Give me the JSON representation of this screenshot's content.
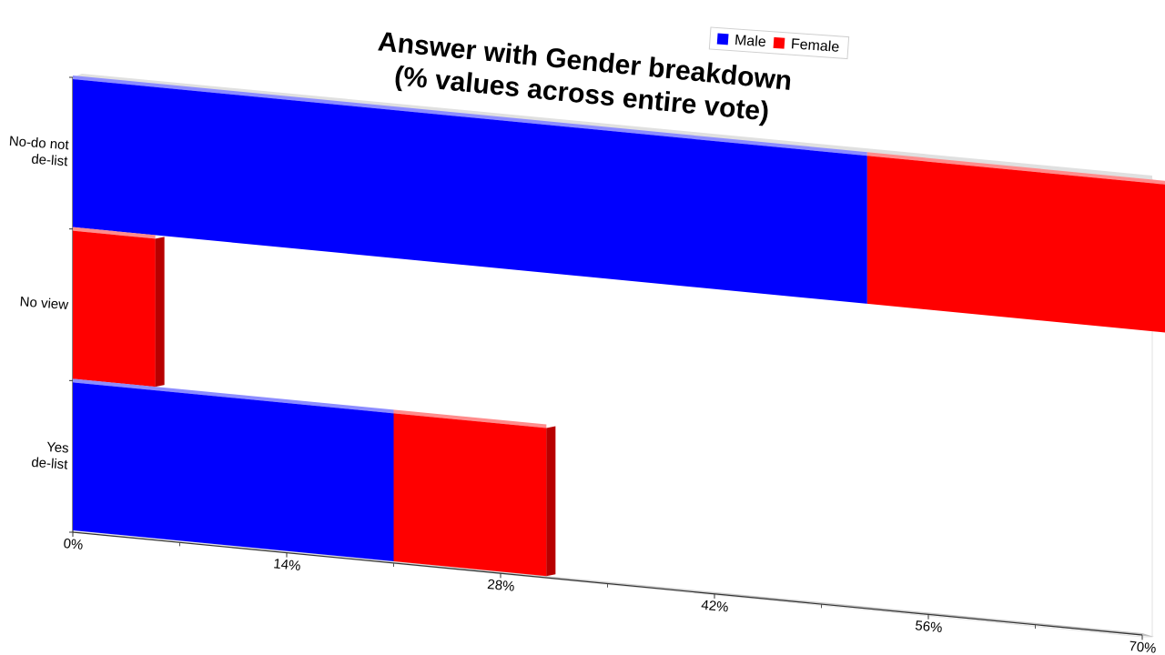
{
  "chart_data": {
    "type": "bar",
    "orientation": "horizontal",
    "stacked": true,
    "title": [
      "Answer with Gender breakdown",
      "(% values across entire vote)"
    ],
    "categories": [
      "No-do not de-list",
      "No view",
      "Yes de-list"
    ],
    "category_label_lines": [
      [
        "No-do not",
        "de-list"
      ],
      [
        "No view"
      ],
      [
        "Yes",
        "de-list"
      ]
    ],
    "series": [
      {
        "name": "Male",
        "color": "#0000ff",
        "values": [
          52,
          0,
          21
        ]
      },
      {
        "name": "Female",
        "color": "#ff0000",
        "values": [
          19.5,
          5.4,
          10
        ]
      }
    ],
    "xlim": [
      0,
      70
    ],
    "xticks": [
      0,
      14,
      28,
      42,
      56,
      70
    ],
    "xtick_labels": [
      "0%",
      "14%",
      "28%",
      "42%",
      "56%",
      "70%"
    ],
    "legend_position": "top-right",
    "grid": false
  }
}
